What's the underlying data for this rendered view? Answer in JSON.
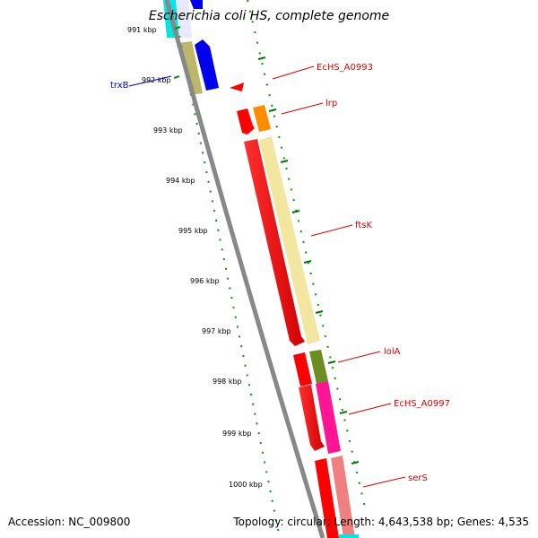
{
  "title": "Escherichia coli HS, complete genome",
  "footer": {
    "accession": "Accession: NC_009800",
    "summary": "Topology: circular; Length: 4,643,538 bp; Genes: 4,535"
  },
  "ticks": [
    "991 kbp",
    "992 kbp",
    "993 kbp",
    "994 kbp",
    "995 kbp",
    "996 kbp",
    "997 kbp",
    "998 kbp",
    "999 kbp",
    "1000 kbp"
  ],
  "genes": [
    {
      "name": "trxB",
      "color": "#0000cc"
    },
    {
      "name": "EcHS_A0993",
      "color": "#dd0000"
    },
    {
      "name": "lrp",
      "color": "#dd0000"
    },
    {
      "name": "ftsK",
      "color": "#dd0000"
    },
    {
      "name": "lolA",
      "color": "#dd0000"
    },
    {
      "name": "EcHS_A0997",
      "color": "#dd0000"
    },
    {
      "name": "serS",
      "color": "#dd0000"
    }
  ],
  "colors": {
    "backbone": "#888888",
    "dot_track": "#009900",
    "red_feature": "#ff0000",
    "khaki_feature": "#f2e6a0",
    "orange_feature": "#ff8c00",
    "olive_feature": "#6b8e23",
    "magenta_feature": "#ff1493",
    "salmon_feature": "#f08080",
    "blue_feature": "#0000ee",
    "tan_feature": "#bdb76b",
    "cyan_feature": "#00ffff"
  }
}
